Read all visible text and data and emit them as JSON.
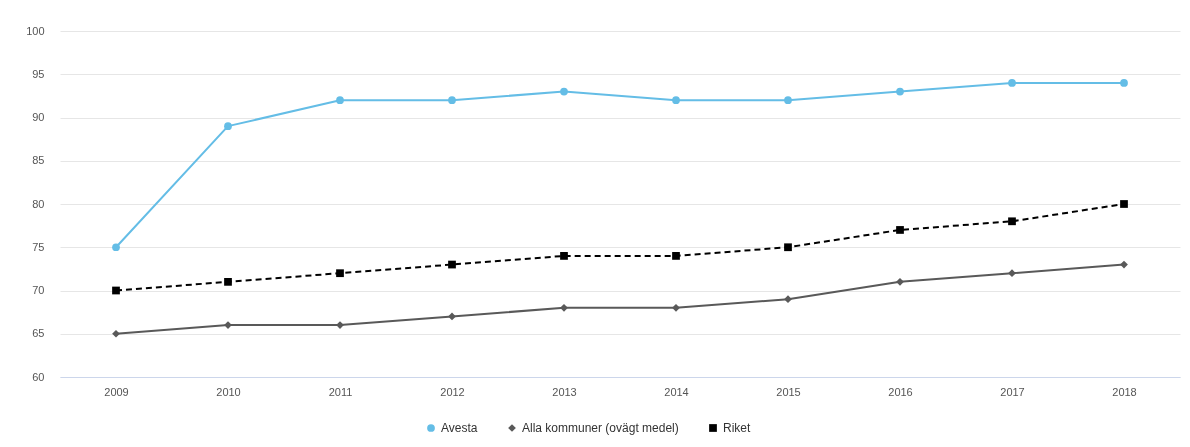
{
  "chart_data": {
    "type": "line",
    "categories": [
      "2009",
      "2010",
      "2011",
      "2012",
      "2013",
      "2014",
      "2015",
      "2016",
      "2017",
      "2018"
    ],
    "series": [
      {
        "name": "Avesta",
        "color": "#64bde6",
        "marker": "circle",
        "line_style": "solid",
        "values": [
          75,
          89,
          92,
          92,
          93,
          92,
          92,
          93,
          94,
          94
        ]
      },
      {
        "name": "Alla kommuner (ovägt medel)",
        "color": "#595959",
        "marker": "diamond",
        "line_style": "solid",
        "values": [
          65,
          66,
          66,
          67,
          68,
          68,
          69,
          71,
          72,
          73
        ]
      },
      {
        "name": "Riket",
        "color": "#000000",
        "marker": "square",
        "line_style": "dashed",
        "values": [
          70,
          71,
          72,
          73,
          74,
          74,
          75,
          77,
          78,
          80
        ]
      }
    ],
    "ylim": [
      60,
      100
    ],
    "yticks": [
      60,
      65,
      70,
      75,
      80,
      85,
      90,
      95,
      100
    ],
    "grid": "y",
    "legend": "bottom"
  }
}
